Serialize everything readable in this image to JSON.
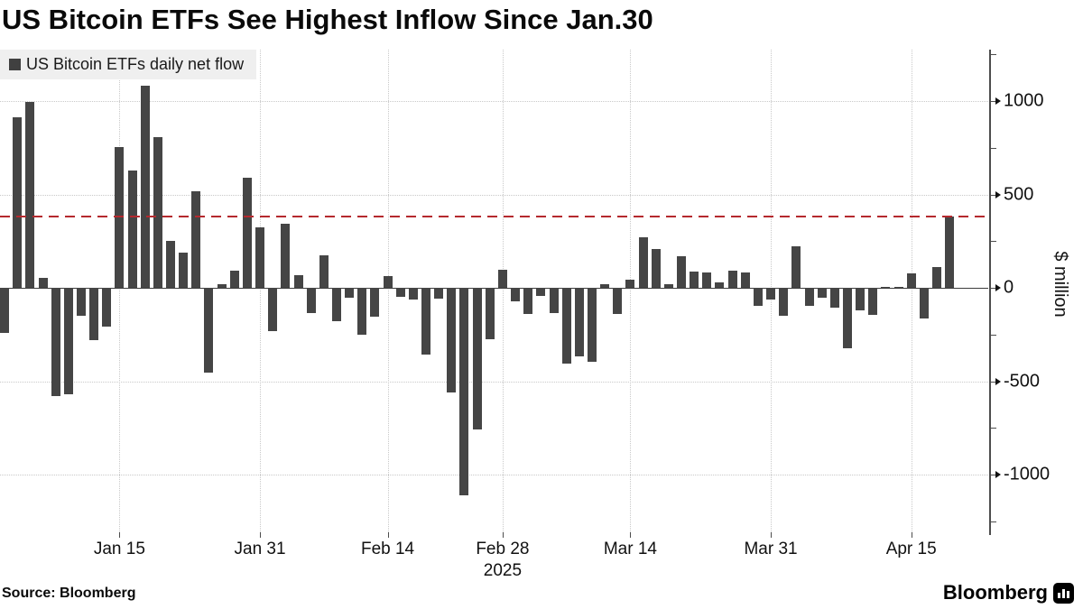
{
  "title": "US Bitcoin ETFs See Highest Inflow Since Jan.30",
  "legend": {
    "label": "US Bitcoin ETFs daily net flow"
  },
  "source": "Source: Bloomberg",
  "logo": {
    "text": "Bloomberg",
    "icon": "bloomberg-media-bars-icon"
  },
  "axis": {
    "y": {
      "title": "$ million",
      "major_ticks": [
        1000,
        500,
        0,
        -500,
        -1000
      ],
      "minor_tick_step": 250
    },
    "x": {
      "year": "2025"
    }
  },
  "colors": {
    "bar": "#454545",
    "reference_line": "#b5292e",
    "grid": "#c9c9c9",
    "legend_background": "#efefef",
    "axis": "#4d4d4d",
    "text": "#111111"
  },
  "chart_data": {
    "type": "bar",
    "title": "US Bitcoin ETFs See Highest Inflow Since Jan.30",
    "series_name": "US Bitcoin ETFs daily net flow",
    "xlabel": "",
    "ylabel": "$ million",
    "ylim": [
      -1250,
      1250
    ],
    "grid": "dotted horizontal at majors, dotted vertical at date ticks",
    "legend_position": "top-left",
    "reference_line": {
      "value": 383,
      "style": "dashed",
      "color": "#b5292e"
    },
    "x_labels": [
      {
        "label": "Jan 15",
        "index": 9
      },
      {
        "label": "Jan 31",
        "index": 20
      },
      {
        "label": "Feb 14",
        "index": 30
      },
      {
        "label": "Feb 28",
        "index": 39,
        "sub": "2025"
      },
      {
        "label": "Mar 14",
        "index": 49
      },
      {
        "label": "Mar 31",
        "index": 60
      },
      {
        "label": "Apr 15",
        "index": 71
      }
    ],
    "values": [
      -240,
      915,
      995,
      55,
      -580,
      -568,
      -150,
      -282,
      -206,
      755,
      628,
      1080,
      805,
      250,
      190,
      518,
      -455,
      20,
      93,
      590,
      322,
      -230,
      342,
      66,
      -135,
      172,
      -180,
      -55,
      -252,
      -157,
      65,
      -50,
      -65,
      -358,
      -60,
      -560,
      -1110,
      -760,
      -276,
      95,
      -74,
      -140,
      -45,
      -134,
      -405,
      -368,
      -395,
      18,
      -138,
      45,
      272,
      210,
      20,
      167,
      88,
      84,
      30,
      93,
      80,
      -97,
      -65,
      -150,
      222,
      -95,
      -55,
      -105,
      -326,
      -122,
      -146,
      4,
      4,
      78,
      -165,
      113,
      383
    ]
  }
}
